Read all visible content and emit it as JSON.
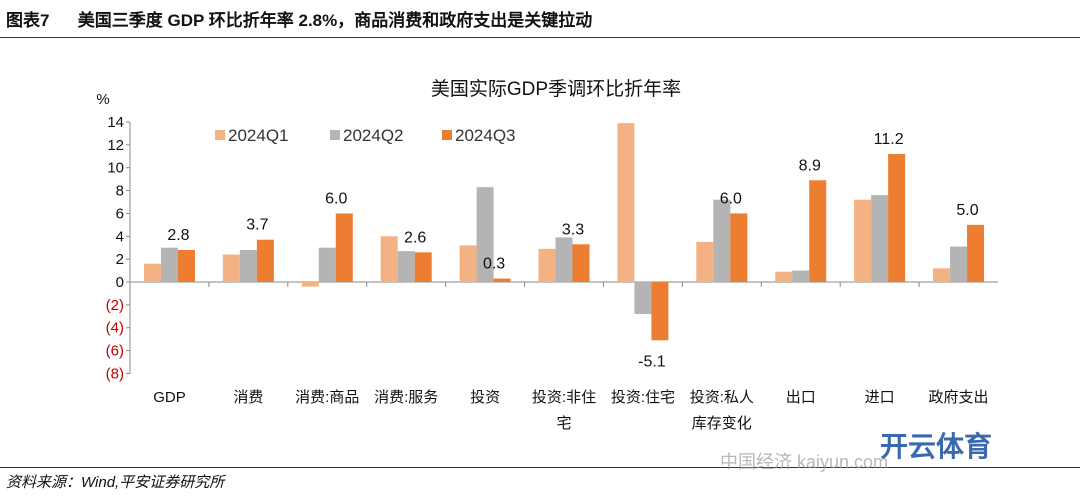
{
  "figure_title": "图表7      美国三季度 GDP 环比折年率 2.8%，商品消费和政府支出是关键拉动",
  "source": "资料来源：Wind,平安证券研究所",
  "watermark": "开云体育",
  "watermark_sub": "中国经济 kaiyun.com",
  "chart_data": {
    "type": "bar",
    "title": "美国实际GDP季调环比折年率",
    "ylabel": "%",
    "xlabel": "",
    "ylim": [
      -8,
      14
    ],
    "yticks": [
      14,
      12,
      10,
      8,
      6,
      4,
      2,
      0,
      -2,
      -4,
      -6,
      -8
    ],
    "ytick_labels": [
      "14",
      "12",
      "10",
      "8",
      "6",
      "4",
      "2",
      "0",
      "(2)",
      "(4)",
      "(6)",
      "(8)"
    ],
    "legend_position": "top-left",
    "categories": [
      [
        "GDP"
      ],
      [
        "消费"
      ],
      [
        "消费:商品"
      ],
      [
        "消费:服务"
      ],
      [
        "投资"
      ],
      [
        "投资:非住",
        "宅"
      ],
      [
        "投资:住宅"
      ],
      [
        "投资:私人",
        "库存变化"
      ],
      [
        "出口"
      ],
      [
        "进口"
      ],
      [
        "政府支出"
      ]
    ],
    "series": [
      {
        "name": "2024Q1",
        "color": "#F4B183",
        "values": [
          1.6,
          2.4,
          -0.4,
          4.0,
          3.2,
          2.9,
          13.9,
          3.5,
          0.9,
          7.2,
          1.2
        ]
      },
      {
        "name": "2024Q2",
        "color": "#B4B4B4",
        "values": [
          3.0,
          2.8,
          3.0,
          2.7,
          8.3,
          3.9,
          -2.8,
          7.2,
          1.0,
          7.6,
          3.1
        ]
      },
      {
        "name": "2024Q3",
        "color": "#ED7D31",
        "values": [
          2.8,
          3.7,
          6.0,
          2.6,
          0.3,
          3.3,
          -5.1,
          6.0,
          8.9,
          11.2,
          5.0
        ]
      }
    ],
    "data_labels": [
      "2.8",
      "3.7",
      "6.0",
      "2.6",
      "0.3",
      "3.3",
      "-5.1",
      "6.0",
      "8.9",
      "11.2",
      "5.0"
    ],
    "negative_tick_color": "#C00000"
  }
}
